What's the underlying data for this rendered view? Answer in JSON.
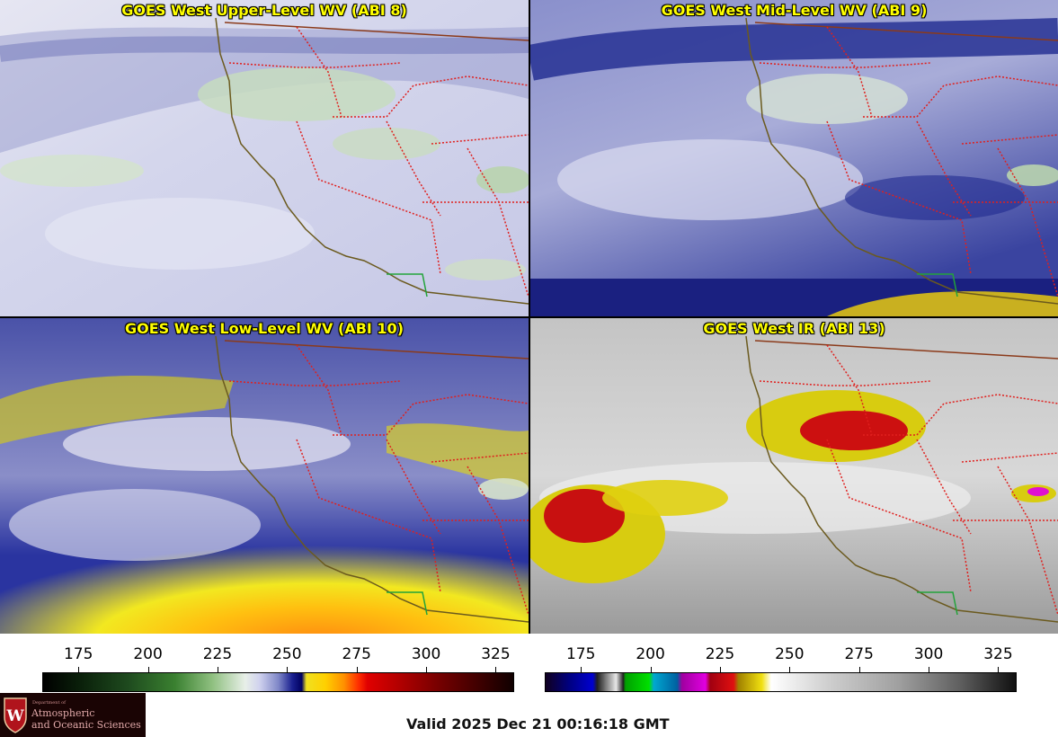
{
  "panels": [
    {
      "title": "GOES West Upper-Level WV (ABI 8)",
      "colormap": "wv"
    },
    {
      "title": "GOES West Mid-Level WV (ABI 9)",
      "colormap": "wv"
    },
    {
      "title": "GOES West Low-Level WV (ABI 10)",
      "colormap": "wv"
    },
    {
      "title": "GOES West IR (ABI 13)",
      "colormap": "ir"
    }
  ],
  "colorbar_left": {
    "ticks": [
      "175",
      "200",
      "225",
      "250",
      "275",
      "300",
      "325"
    ],
    "range": [
      162,
      331
    ]
  },
  "colorbar_right": {
    "ticks": [
      "175",
      "200",
      "225",
      "250",
      "275",
      "300",
      "325"
    ],
    "range": [
      162,
      331
    ]
  },
  "logo": {
    "department": "Department of",
    "line1": "Atmospheric",
    "line2": "and Oceanic Sciences",
    "shield_letter": "W"
  },
  "valid_time": "Valid 2025 Dec 21 00:16:18 GMT",
  "colors": {
    "coastline": "#6b5a1e",
    "state_border": "#e0201e",
    "mexico_border": "#22a33a",
    "canada_border": "#8b3a1a"
  }
}
